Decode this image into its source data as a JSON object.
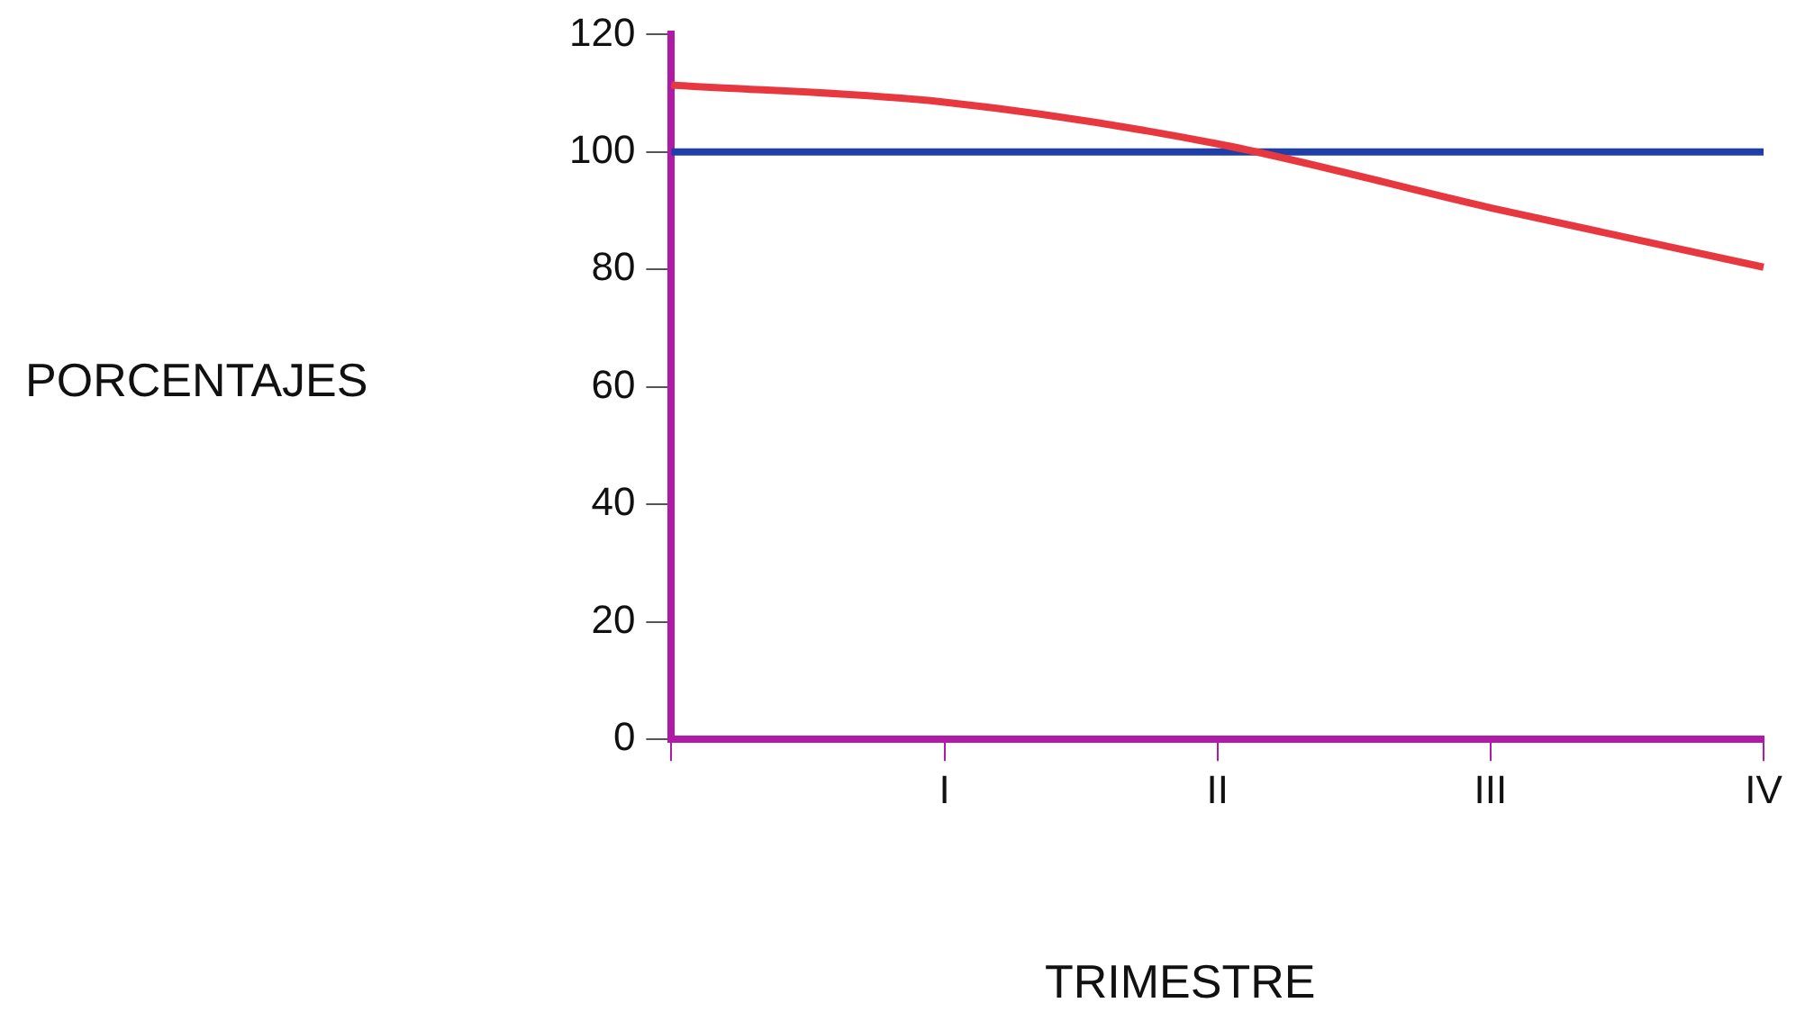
{
  "chart_data": {
    "type": "line",
    "xlabel": "TRIMESTRE",
    "ylabel": "PORCENTAJES",
    "categories": [
      null,
      "I",
      "II",
      "III",
      "IV"
    ],
    "series": [
      {
        "color": "#e8383f",
        "values": [
          111.4,
          108.5,
          101.4,
          90.5,
          80.4
        ]
      },
      {
        "color": "#1f3fa8",
        "values": [
          100,
          100,
          100,
          100,
          100
        ]
      }
    ],
    "ylim": [
      0,
      120
    ],
    "yticks": [
      0,
      20,
      40,
      60,
      80,
      100,
      120
    ],
    "grid": false,
    "legend": false,
    "marker": "none",
    "line_style": "solid"
  }
}
